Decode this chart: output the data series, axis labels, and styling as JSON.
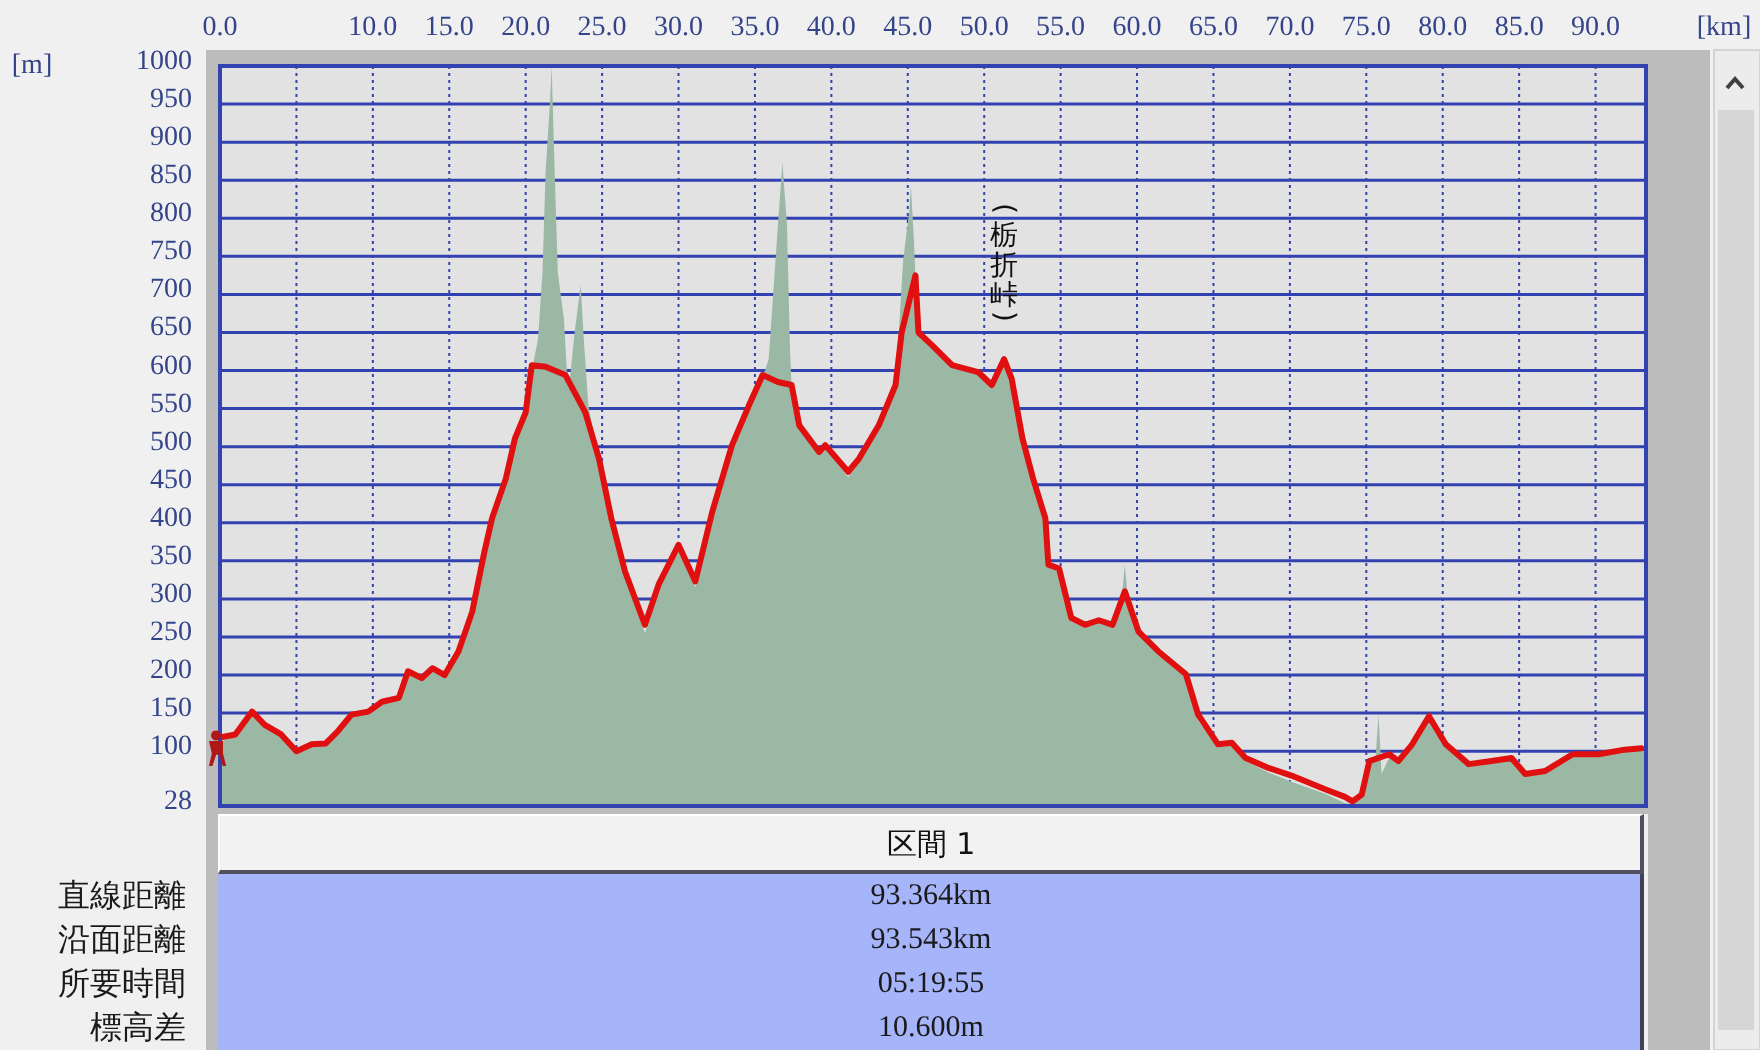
{
  "chart_data": [
    {
      "type": "line",
      "xlabel": "[km]",
      "ylabel": "[m]",
      "xlim": [
        0,
        93.3
      ],
      "ylim": [
        28,
        1000
      ],
      "xticks": [
        {
          "value": 0,
          "label": "0.0"
        },
        {
          "value": 5,
          "label": null
        },
        {
          "value": 10,
          "label": "10.0"
        },
        {
          "value": 15,
          "label": "15.0"
        },
        {
          "value": 20,
          "label": "20.0"
        },
        {
          "value": 25,
          "label": "25.0"
        },
        {
          "value": 30,
          "label": "30.0"
        },
        {
          "value": 35,
          "label": "35.0"
        },
        {
          "value": 40,
          "label": "40.0"
        },
        {
          "value": 45,
          "label": "45.0"
        },
        {
          "value": 50,
          "label": "50.0"
        },
        {
          "value": 55,
          "label": "55.0"
        },
        {
          "value": 60,
          "label": "60.0"
        },
        {
          "value": 65,
          "label": "65.0"
        },
        {
          "value": 70,
          "label": "70.0"
        },
        {
          "value": 75,
          "label": "75.0"
        },
        {
          "value": 80,
          "label": "80.0"
        },
        {
          "value": 85,
          "label": "85.0"
        },
        {
          "value": 90,
          "label": "90.0"
        }
      ],
      "yticks": [
        28,
        100,
        150,
        200,
        250,
        300,
        350,
        400,
        450,
        500,
        550,
        600,
        650,
        700,
        750,
        800,
        850,
        900,
        950,
        1000
      ],
      "grid": true,
      "series": [
        {
          "type": "area",
          "color": "#9bb8a5",
          "x": [
            0,
            1.0,
            2.1,
            2.9,
            4.0,
            5.0,
            6.0,
            6.9,
            7.7,
            8.6,
            9.7,
            10.6,
            11.7,
            12.3,
            13.2,
            13.9,
            14.7,
            15.6,
            16.5,
            17.3,
            17.8,
            18.7,
            19.3,
            20.0,
            20.4,
            20.8,
            21.1,
            21.3,
            21.6,
            21.7,
            21.9,
            22.1,
            22.5,
            22.7,
            22.9,
            23.2,
            23.6,
            23.8,
            24.1,
            24.8,
            25.6,
            26.5,
            27.8,
            28.7,
            30.0,
            31.1,
            32.2,
            33.5,
            34.6,
            35.5,
            35.9,
            36.5,
            36.8,
            37.1,
            37.3,
            37.4,
            37.9,
            39.2,
            39.6,
            41.1,
            41.8,
            43.1,
            44.2,
            44.7,
            45.1,
            45.2,
            45.4,
            45.6,
            45.7,
            46.6,
            47.9,
            49.6,
            50.5,
            51.3,
            51.8,
            52.5,
            53.2,
            54.0,
            54.2,
            54.9,
            55.7,
            56.6,
            57.5,
            58.4,
            59.0,
            59.2,
            59.4,
            60.1,
            61.4,
            63.2,
            64.0,
            65.3,
            66.2,
            67.1,
            68.6,
            70.1,
            72.3,
            73.6,
            74.1,
            74.7,
            75.2,
            75.6,
            75.8,
            76.0,
            76.5,
            77.1,
            78.0,
            79.1,
            80.2,
            81.7,
            83.2,
            84.5,
            85.4,
            86.7,
            88.5,
            90.2,
            91.9,
            93.3
          ],
          "values": [
            112,
            120,
            150,
            133,
            120,
            98,
            106,
            108,
            124,
            145,
            150,
            163,
            168,
            202,
            193,
            206,
            197,
            228,
            280,
            358,
            402,
            455,
            508,
            540,
            600,
            640,
            729,
            860,
            956,
            1000,
            860,
            729,
            668,
            598,
            590,
            650,
            712,
            642,
            554,
            480,
            402,
            330,
            255,
            315,
            366,
            315,
            410,
            498,
            550,
            590,
            615,
            790,
            873,
            790,
            624,
            578,
            524,
            488,
            498,
            460,
            480,
            524,
            578,
            746,
            808,
            843,
            773,
            668,
            648,
            630,
            604,
            595,
            578,
            612,
            585,
            508,
            455,
            402,
            342,
            336,
            270,
            262,
            268,
            262,
            300,
            345,
            300,
            253,
            228,
            198,
            140,
            105,
            109,
            87,
            72,
            60,
            44,
            32,
            30,
            40,
            84,
            90,
            148,
            70,
            92,
            84,
            106,
            142,
            105,
            80,
            84,
            88,
            67,
            71,
            93,
            93,
            99,
            101
          ]
        },
        {
          "type": "line",
          "color": "#e01010",
          "x": [
            0,
            1.0,
            2.1,
            2.9,
            4.0,
            5.0,
            6.0,
            6.9,
            7.7,
            8.6,
            9.7,
            10.6,
            11.7,
            12.3,
            13.2,
            13.9,
            14.7,
            15.6,
            16.5,
            17.3,
            17.8,
            18.7,
            19.3,
            20.0,
            20.4,
            21.3,
            22.6,
            23.9,
            24.8,
            25.6,
            26.5,
            27.8,
            28.7,
            30.0,
            31.1,
            32.2,
            33.5,
            34.6,
            35.5,
            36.5,
            37.4,
            37.9,
            39.2,
            39.6,
            41.1,
            41.8,
            43.1,
            44.2,
            44.6,
            45.5,
            45.7,
            46.6,
            47.9,
            49.6,
            50.5,
            51.3,
            51.8,
            52.5,
            53.2,
            54.0,
            54.2,
            54.9,
            55.7,
            56.6,
            57.5,
            58.4,
            59.2,
            60.1,
            61.4,
            63.2,
            64.0,
            65.3,
            66.2,
            67.1,
            68.6,
            70.1,
            72.3,
            73.6,
            74.1,
            74.7,
            75.2,
            76.5,
            77.1,
            78.0,
            79.1,
            80.2,
            81.7,
            83.2,
            84.5,
            85.4,
            86.7,
            88.5,
            90.2,
            91.9,
            93.0
          ],
          "values": [
            118,
            122,
            152,
            135,
            122,
            100,
            109,
            110,
            126,
            148,
            152,
            165,
            170,
            205,
            196,
            209,
            200,
            231,
            283,
            362,
            406,
            458,
            511,
            545,
            607,
            605,
            594,
            545,
            484,
            406,
            336,
            266,
            319,
            371,
            323,
            414,
            502,
            554,
            594,
            585,
            581,
            528,
            493,
            502,
            467,
            484,
            528,
            581,
            650,
            725,
            650,
            633,
            607,
            598,
            581,
            615,
            589,
            511,
            458,
            406,
            345,
            340,
            275,
            266,
            272,
            266,
            310,
            257,
            231,
            201,
            148,
            109,
            111,
            91,
            78,
            68,
            50,
            40,
            34,
            43,
            87,
            96,
            87,
            109,
            146,
            109,
            83,
            87,
            91,
            70,
            74,
            96,
            96,
            102,
            104
          ]
        }
      ],
      "annotations": [
        {
          "text": "(栃折峠)",
          "x": 51.3,
          "y": 615
        }
      ]
    },
    {
      "type": "other",
      "title": "区間 1",
      "categories": [
        "直線距離",
        "沿面距離",
        "所要時間",
        "標高差"
      ],
      "annotations": [
        "93.364km",
        "93.543km",
        "05:19:55",
        "10.600m"
      ]
    }
  ]
}
